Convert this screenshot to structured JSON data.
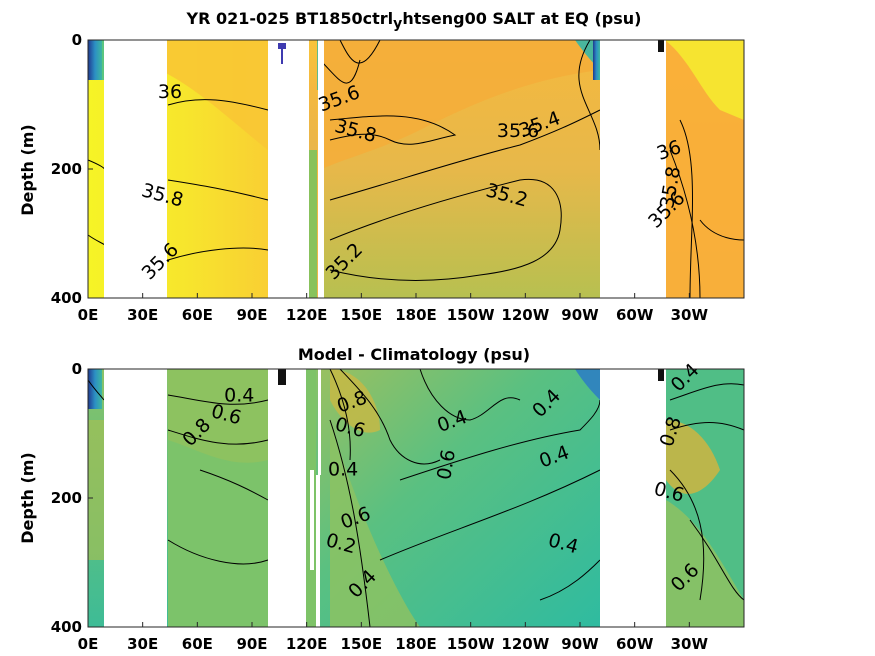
{
  "chart_data": [
    {
      "type": "heatmap",
      "title": "YR 021-025 BT1850ctrl",
      "title_subscript": "y",
      "title_suffix": "htseng00 SALT at EQ (psu)",
      "xlabel": "",
      "ylabel": "Depth (m)",
      "x_ticks": [
        "0E",
        "30E",
        "60E",
        "90E",
        "120E",
        "150E",
        "180E",
        "150W",
        "120W",
        "90W",
        "60W",
        "30W"
      ],
      "y_ticks": [
        "0",
        "200",
        "400"
      ],
      "ylim": [
        400,
        0
      ],
      "xlim": [
        0,
        360
      ],
      "land_gaps_lon": [
        [
          5,
          43
        ],
        [
          97,
          123
        ],
        [
          126,
          129
        ],
        [
          290,
          307
        ]
      ],
      "colormap": "parula",
      "contour_labels": [
        {
          "text": "36",
          "lon": 45,
          "depth": 90
        },
        {
          "text": "35.8",
          "lon": 40,
          "depth": 250
        },
        {
          "text": "35.6",
          "lon": 42,
          "depth": 350
        },
        {
          "text": "35.6",
          "lon": 139,
          "depth": 100
        },
        {
          "text": "35.8",
          "lon": 146,
          "depth": 150
        },
        {
          "text": "35.6",
          "lon": 236,
          "depth": 150
        },
        {
          "text": "35.4",
          "lon": 249,
          "depth": 140
        },
        {
          "text": "35.2",
          "lon": 229,
          "depth": 250
        },
        {
          "text": "35.2",
          "lon": 143,
          "depth": 350
        },
        {
          "text": "36",
          "lon": 320,
          "depth": 180
        },
        {
          "text": "35.8",
          "lon": 323,
          "depth": 230
        },
        {
          "text": "35.6",
          "lon": 320,
          "depth": 270
        }
      ]
    },
    {
      "type": "heatmap",
      "title": "Model - Climatology (psu)",
      "xlabel": "",
      "ylabel": "Depth (m)",
      "x_ticks": [
        "0E",
        "30E",
        "60E",
        "90E",
        "120E",
        "150E",
        "180E",
        "150W",
        "120W",
        "90W",
        "60W",
        "30W"
      ],
      "y_ticks": [
        "0",
        "200",
        "400"
      ],
      "ylim": [
        400,
        0
      ],
      "xlim": [
        0,
        360
      ],
      "land_gaps_lon": [
        [
          5,
          43
        ],
        [
          97,
          123
        ],
        [
          126,
          129
        ],
        [
          290,
          307
        ]
      ],
      "colormap": "parula",
      "contour_labels": [
        {
          "text": "0.4",
          "lon": 83,
          "depth": 50
        },
        {
          "text": "0.6",
          "lon": 75,
          "depth": 80
        },
        {
          "text": "0.8",
          "lon": 62,
          "depth": 105
        },
        {
          "text": "0.8",
          "lon": 146,
          "depth": 60
        },
        {
          "text": "0.6",
          "lon": 143,
          "depth": 100
        },
        {
          "text": "0.4",
          "lon": 140,
          "depth": 165
        },
        {
          "text": "0.6",
          "lon": 148,
          "depth": 240
        },
        {
          "text": "0.2",
          "lon": 138,
          "depth": 280
        },
        {
          "text": "0.4",
          "lon": 153,
          "depth": 340
        },
        {
          "text": "0.4",
          "lon": 201,
          "depth": 90
        },
        {
          "text": "0.6",
          "lon": 200,
          "depth": 150
        },
        {
          "text": "0.4",
          "lon": 254,
          "depth": 60
        },
        {
          "text": "0.4",
          "lon": 257,
          "depth": 145
        },
        {
          "text": "0.4",
          "lon": 260,
          "depth": 280
        },
        {
          "text": "0.4",
          "lon": 330,
          "depth": 20
        },
        {
          "text": "0.8",
          "lon": 323,
          "depth": 100
        },
        {
          "text": "0.6",
          "lon": 318,
          "depth": 200
        },
        {
          "text": "0.6",
          "lon": 330,
          "depth": 330
        }
      ]
    }
  ]
}
